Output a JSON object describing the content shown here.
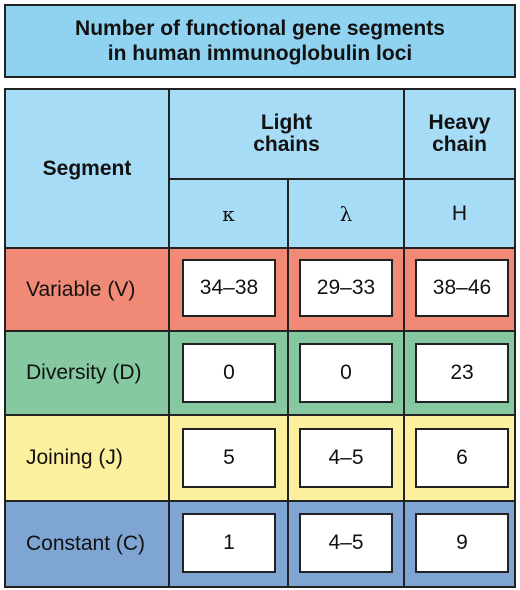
{
  "title": {
    "line1": "Number of functional gene segments",
    "line2": "in human immunoglobulin loci"
  },
  "header": {
    "segment": "Segment",
    "light_line1": "Light",
    "light_line2": "chains",
    "heavy_line1": "Heavy",
    "heavy_line2": "chain",
    "sub_kappa": "κ",
    "sub_lambda": "λ",
    "sub_h": "H"
  },
  "colors": {
    "title_bg": "#8fd3f1",
    "header_bg": "#a6dcf5",
    "variable_bg": "#f08a76",
    "diversity_bg": "#86c9a1",
    "joining_bg": "#fcef9d",
    "constant_bg": "#7fa6d3"
  },
  "rows": [
    {
      "label": "Variable (V)",
      "kappa": "34–38",
      "lambda": "29–33",
      "heavy": "38–46"
    },
    {
      "label": "Diversity (D)",
      "kappa": "0",
      "lambda": "0",
      "heavy": "23"
    },
    {
      "label": "Joining (J)",
      "kappa": "5",
      "lambda": "4–5",
      "heavy": "6"
    },
    {
      "label": "Constant (C)",
      "kappa": "1",
      "lambda": "4–5",
      "heavy": "9"
    }
  ]
}
